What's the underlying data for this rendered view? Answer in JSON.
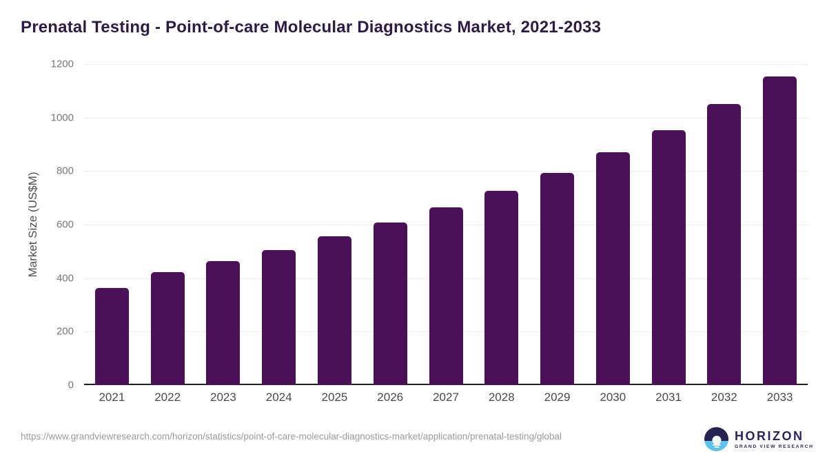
{
  "title": "Prenatal Testing - Point-of-care Molecular Diagnostics Market, 2021-2033",
  "chart_data": {
    "type": "bar",
    "categories": [
      "2021",
      "2022",
      "2023",
      "2024",
      "2025",
      "2026",
      "2027",
      "2028",
      "2029",
      "2030",
      "2031",
      "2032",
      "2033"
    ],
    "values": [
      364,
      423,
      464,
      506,
      556,
      607,
      664,
      726,
      794,
      871,
      954,
      1050,
      1154
    ],
    "title": "Prenatal Testing - Point-of-care Molecular Diagnostics Market, 2021-2033",
    "xlabel": "",
    "ylabel": "Market Size (US$M)",
    "ylim": [
      0,
      1200
    ],
    "yticks": [
      0,
      200,
      400,
      600,
      800,
      1000,
      1200
    ],
    "grid": true,
    "legend": "none",
    "bar_color": "#4a1159"
  },
  "footer": {
    "source_url": "https://www.grandviewresearch.com/horizon/statistics/point-of-care-molecular-diagnostics-market/application/prenatal-testing/global",
    "logo_text": "HORIZON",
    "logo_subtext": "GRAND VIEW RESEARCH"
  },
  "colors": {
    "bar": "#4a1159",
    "title_text": "#2e1a47",
    "gridline": "#ececec",
    "axis_line": "#1f1f1f",
    "tick_text": "#767676",
    "x_tick_text": "#4a4a4a",
    "url_text": "#9b9b9b",
    "logo_dark": "#282251",
    "logo_blue": "#5cc3ee"
  }
}
